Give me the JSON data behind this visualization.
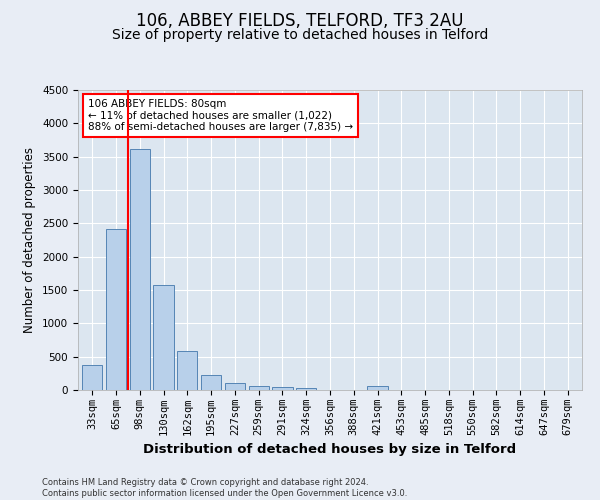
{
  "title": "106, ABBEY FIELDS, TELFORD, TF3 2AU",
  "subtitle": "Size of property relative to detached houses in Telford",
  "xlabel": "Distribution of detached houses by size in Telford",
  "ylabel": "Number of detached properties",
  "categories": [
    "33sqm",
    "65sqm",
    "98sqm",
    "130sqm",
    "162sqm",
    "195sqm",
    "227sqm",
    "259sqm",
    "291sqm",
    "324sqm",
    "356sqm",
    "388sqm",
    "421sqm",
    "453sqm",
    "485sqm",
    "518sqm",
    "550sqm",
    "582sqm",
    "614sqm",
    "647sqm",
    "679sqm"
  ],
  "values": [
    370,
    2420,
    3620,
    1580,
    590,
    230,
    110,
    65,
    40,
    35,
    0,
    0,
    60,
    0,
    0,
    0,
    0,
    0,
    0,
    0,
    0
  ],
  "bar_color": "#b8d0ea",
  "bar_edge_color": "#5585b5",
  "vline_x": 1.5,
  "vline_color": "red",
  "annotation_text": "106 ABBEY FIELDS: 80sqm\n← 11% of detached houses are smaller (1,022)\n88% of semi-detached houses are larger (7,835) →",
  "annotation_box_color": "white",
  "annotation_box_edge": "red",
  "ylim": [
    0,
    4500
  ],
  "yticks": [
    0,
    500,
    1000,
    1500,
    2000,
    2500,
    3000,
    3500,
    4000,
    4500
  ],
  "bg_color": "#e8edf5",
  "plot_bg_color": "#dce6f0",
  "footer": "Contains HM Land Registry data © Crown copyright and database right 2024.\nContains public sector information licensed under the Open Government Licence v3.0.",
  "title_fontsize": 12,
  "subtitle_fontsize": 10,
  "xlabel_fontsize": 9.5,
  "ylabel_fontsize": 8.5,
  "tick_fontsize": 7.5,
  "annotation_fontsize": 7.5,
  "footer_fontsize": 6
}
